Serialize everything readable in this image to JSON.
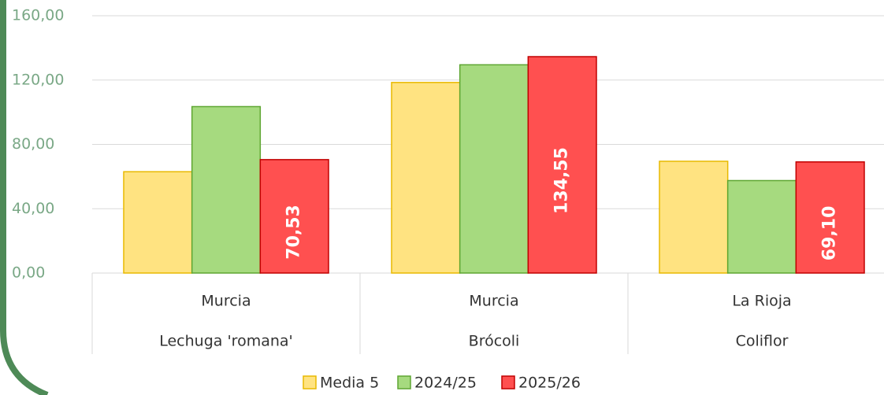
{
  "chart_data": {
    "type": "bar",
    "regions": [
      "Murcia",
      "Murcia",
      "La Rioja"
    ],
    "categories": [
      "Lechuga 'romana'",
      "Brócoli",
      "Coliflor"
    ],
    "series": [
      {
        "name": "Media 5",
        "color": "#ffe381",
        "stroke": "#e8b900",
        "values": [
          63,
          118.5,
          69.5
        ]
      },
      {
        "name": "2024/25",
        "color": "#a6da7f",
        "stroke": "#5ea632",
        "values": [
          103.5,
          129.5,
          57.5
        ]
      },
      {
        "name": "2025/26",
        "color": "#ff5050",
        "stroke": "#c00000",
        "values": [
          70.53,
          134.55,
          69.1
        ],
        "value_labels": [
          "70,53",
          "134,55",
          "69,10"
        ]
      }
    ],
    "ylim": [
      0,
      160
    ],
    "yticks": [
      {
        "value": 0,
        "label": "0,00"
      },
      {
        "value": 40,
        "label": "40,00"
      },
      {
        "value": 80,
        "label": "80,00"
      },
      {
        "value": 120,
        "label": "120,00"
      },
      {
        "value": 160,
        "label": "160,00"
      }
    ],
    "grid": true,
    "legend": "bottom"
  }
}
